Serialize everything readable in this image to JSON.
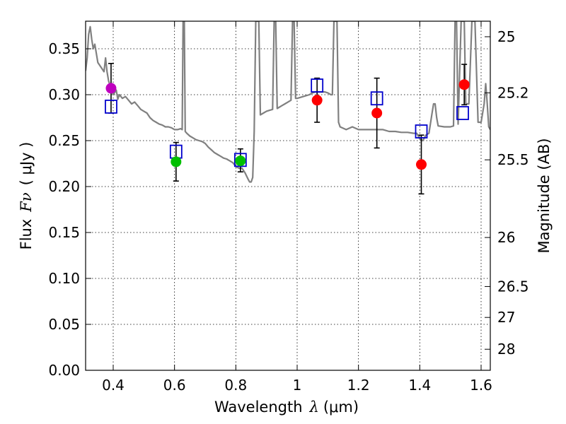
{
  "chart_data": {
    "type": "scatter",
    "title": "",
    "xlabel_prefix": "Wavelength",
    "xlabel_symbol": "λ",
    "xlabel_unit": "(μm)",
    "ylabel_prefix": "Flux",
    "ylabel_symbol": "Fν",
    "ylabel_unit": "( μJy )",
    "right_ylabel": "Magnitude (AB)",
    "xlim": [
      0.31,
      1.63
    ],
    "ylim": [
      0.0,
      0.38
    ],
    "grid": true,
    "x_ticks": [
      {
        "value": 0.4,
        "label": "0.4"
      },
      {
        "value": 0.6,
        "label": "0.6"
      },
      {
        "value": 0.8,
        "label": "0.8"
      },
      {
        "value": 1.0,
        "label": "1"
      },
      {
        "value": 1.2,
        "label": "1.2"
      },
      {
        "value": 1.4,
        "label": "1.4"
      },
      {
        "value": 1.6,
        "label": "1.6"
      }
    ],
    "y_ticks": [
      {
        "value": 0.0,
        "label": "0.00"
      },
      {
        "value": 0.05,
        "label": "0.05"
      },
      {
        "value": 0.1,
        "label": "0.10"
      },
      {
        "value": 0.15,
        "label": "0.15"
      },
      {
        "value": 0.2,
        "label": "0.20"
      },
      {
        "value": 0.25,
        "label": "0.25"
      },
      {
        "value": 0.3,
        "label": "0.30"
      },
      {
        "value": 0.35,
        "label": "0.35"
      }
    ],
    "mag_ticks": [
      {
        "value": 25,
        "label": "25"
      },
      {
        "value": 25.2,
        "label": "25.2"
      },
      {
        "value": 25.5,
        "label": "25.5"
      },
      {
        "value": 26,
        "label": "26"
      },
      {
        "value": 26.5,
        "label": "26.5"
      },
      {
        "value": 27,
        "label": "27"
      },
      {
        "value": 28,
        "label": "28"
      }
    ],
    "colors": {
      "magenta": "#bf00bf",
      "green": "#00bf00",
      "red": "#ff0000",
      "model_box": "#0000cc",
      "sed": "#808080",
      "errorbar": "#000000"
    },
    "observed": [
      {
        "x": 0.393,
        "y": 0.307,
        "err_lo": 0.027,
        "err_hi": 0.027,
        "color": "magenta"
      },
      {
        "x": 0.605,
        "y": 0.227,
        "err_lo": 0.021,
        "err_hi": 0.021,
        "color": "green"
      },
      {
        "x": 0.815,
        "y": 0.228,
        "err_lo": 0.012,
        "err_hi": 0.013,
        "color": "green"
      },
      {
        "x": 1.065,
        "y": 0.294,
        "err_lo": 0.024,
        "err_hi": 0.024,
        "color": "red"
      },
      {
        "x": 1.26,
        "y": 0.28,
        "err_lo": 0.038,
        "err_hi": 0.038,
        "color": "red"
      },
      {
        "x": 1.405,
        "y": 0.224,
        "err_lo": 0.032,
        "err_hi": 0.032,
        "color": "red"
      },
      {
        "x": 1.545,
        "y": 0.311,
        "err_lo": 0.022,
        "err_hi": 0.022,
        "color": "red"
      }
    ],
    "model_photometry": [
      {
        "x": 0.393,
        "y": 0.287
      },
      {
        "x": 0.605,
        "y": 0.238
      },
      {
        "x": 0.815,
        "y": 0.229
      },
      {
        "x": 1.065,
        "y": 0.31
      },
      {
        "x": 1.26,
        "y": 0.296
      },
      {
        "x": 1.405,
        "y": 0.26
      },
      {
        "x": 1.54,
        "y": 0.28
      }
    ],
    "sed_curve": [
      [
        0.31,
        0.326
      ],
      [
        0.315,
        0.34
      ],
      [
        0.32,
        0.366
      ],
      [
        0.325,
        0.374
      ],
      [
        0.33,
        0.36
      ],
      [
        0.335,
        0.35
      ],
      [
        0.34,
        0.355
      ],
      [
        0.35,
        0.335
      ],
      [
        0.36,
        0.33
      ],
      [
        0.37,
        0.325
      ],
      [
        0.375,
        0.34
      ],
      [
        0.38,
        0.325
      ],
      [
        0.385,
        0.315
      ],
      [
        0.39,
        0.31
      ],
      [
        0.4,
        0.3
      ],
      [
        0.41,
        0.305
      ],
      [
        0.415,
        0.295
      ],
      [
        0.42,
        0.3
      ],
      [
        0.43,
        0.296
      ],
      [
        0.44,
        0.298
      ],
      [
        0.45,
        0.294
      ],
      [
        0.46,
        0.29
      ],
      [
        0.47,
        0.292
      ],
      [
        0.48,
        0.288
      ],
      [
        0.49,
        0.284
      ],
      [
        0.5,
        0.282
      ],
      [
        0.51,
        0.28
      ],
      [
        0.52,
        0.275
      ],
      [
        0.53,
        0.272
      ],
      [
        0.54,
        0.27
      ],
      [
        0.55,
        0.268
      ],
      [
        0.56,
        0.267
      ],
      [
        0.57,
        0.265
      ],
      [
        0.58,
        0.265
      ],
      [
        0.59,
        0.264
      ],
      [
        0.6,
        0.262
      ],
      [
        0.61,
        0.262
      ],
      [
        0.62,
        0.263
      ],
      [
        0.625,
        0.262
      ],
      [
        0.628,
        0.38
      ],
      [
        0.632,
        0.38
      ],
      [
        0.635,
        0.26
      ],
      [
        0.64,
        0.258
      ],
      [
        0.65,
        0.255
      ],
      [
        0.66,
        0.253
      ],
      [
        0.67,
        0.251
      ],
      [
        0.68,
        0.25
      ],
      [
        0.69,
        0.249
      ],
      [
        0.7,
        0.247
      ],
      [
        0.71,
        0.243
      ],
      [
        0.72,
        0.24
      ],
      [
        0.73,
        0.237
      ],
      [
        0.74,
        0.235
      ],
      [
        0.75,
        0.233
      ],
      [
        0.76,
        0.231
      ],
      [
        0.77,
        0.23
      ],
      [
        0.78,
        0.228
      ],
      [
        0.79,
        0.226
      ],
      [
        0.8,
        0.222
      ],
      [
        0.81,
        0.22
      ],
      [
        0.82,
        0.22
      ],
      [
        0.83,
        0.215
      ],
      [
        0.84,
        0.208
      ],
      [
        0.845,
        0.205
      ],
      [
        0.85,
        0.205
      ],
      [
        0.855,
        0.21
      ],
      [
        0.86,
        0.26
      ],
      [
        0.865,
        0.38
      ],
      [
        0.875,
        0.38
      ],
      [
        0.88,
        0.278
      ],
      [
        0.89,
        0.28
      ],
      [
        0.9,
        0.282
      ],
      [
        0.91,
        0.283
      ],
      [
        0.92,
        0.284
      ],
      [
        0.925,
        0.38
      ],
      [
        0.93,
        0.38
      ],
      [
        0.935,
        0.285
      ],
      [
        0.95,
        0.288
      ],
      [
        0.96,
        0.29
      ],
      [
        0.97,
        0.292
      ],
      [
        0.98,
        0.294
      ],
      [
        0.985,
        0.38
      ],
      [
        0.99,
        0.38
      ],
      [
        0.995,
        0.296
      ],
      [
        1.0,
        0.296
      ],
      [
        1.02,
        0.298
      ],
      [
        1.04,
        0.3
      ],
      [
        1.05,
        0.302
      ],
      [
        1.06,
        0.303
      ],
      [
        1.07,
        0.303
      ],
      [
        1.08,
        0.303
      ],
      [
        1.09,
        0.303
      ],
      [
        1.1,
        0.302
      ],
      [
        1.11,
        0.3
      ],
      [
        1.115,
        0.3
      ],
      [
        1.12,
        0.38
      ],
      [
        1.13,
        0.38
      ],
      [
        1.135,
        0.27
      ],
      [
        1.14,
        0.265
      ],
      [
        1.16,
        0.262
      ],
      [
        1.18,
        0.265
      ],
      [
        1.2,
        0.262
      ],
      [
        1.22,
        0.262
      ],
      [
        1.24,
        0.262
      ],
      [
        1.25,
        0.262
      ],
      [
        1.26,
        0.262
      ],
      [
        1.28,
        0.262
      ],
      [
        1.3,
        0.26
      ],
      [
        1.32,
        0.26
      ],
      [
        1.34,
        0.259
      ],
      [
        1.36,
        0.259
      ],
      [
        1.38,
        0.258
      ],
      [
        1.39,
        0.258
      ],
      [
        1.4,
        0.252
      ],
      [
        1.41,
        0.25
      ],
      [
        1.42,
        0.256
      ],
      [
        1.43,
        0.258
      ],
      [
        1.44,
        0.28
      ],
      [
        1.445,
        0.29
      ],
      [
        1.45,
        0.29
      ],
      [
        1.455,
        0.275
      ],
      [
        1.46,
        0.266
      ],
      [
        1.48,
        0.265
      ],
      [
        1.5,
        0.265
      ],
      [
        1.51,
        0.266
      ],
      [
        1.515,
        0.38
      ],
      [
        1.52,
        0.38
      ],
      [
        1.525,
        0.268
      ],
      [
        1.535,
        0.38
      ],
      [
        1.545,
        0.38
      ],
      [
        1.55,
        0.29
      ],
      [
        1.56,
        0.29
      ],
      [
        1.57,
        0.38
      ],
      [
        1.58,
        0.38
      ],
      [
        1.59,
        0.27
      ],
      [
        1.6,
        0.27
      ],
      [
        1.61,
        0.29
      ],
      [
        1.615,
        0.312
      ],
      [
        1.62,
        0.29
      ],
      [
        1.625,
        0.265
      ],
      [
        1.63,
        0.262
      ]
    ]
  }
}
